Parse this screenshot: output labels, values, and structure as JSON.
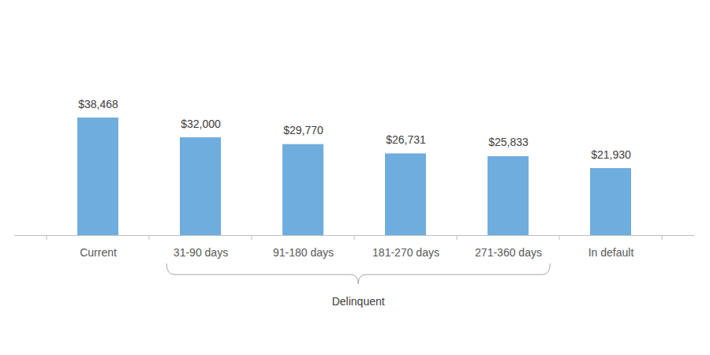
{
  "chart_data": {
    "type": "bar",
    "categories": [
      "Current",
      "31-90 days",
      "91-180 days",
      "181-270 days",
      "271-360 days",
      "In default"
    ],
    "values": [
      38468,
      32000,
      29770,
      26731,
      25833,
      21930
    ],
    "value_labels": [
      "$38,468",
      "$32,000",
      "$29,770",
      "$26,731",
      "$25,833",
      "$21,930"
    ],
    "data_labels": true,
    "tick_labels": "x",
    "color": "#70addf",
    "annotations": [
      {
        "text": "Delinquent",
        "from": "31-90 days",
        "to": "271-360 days"
      }
    ]
  }
}
